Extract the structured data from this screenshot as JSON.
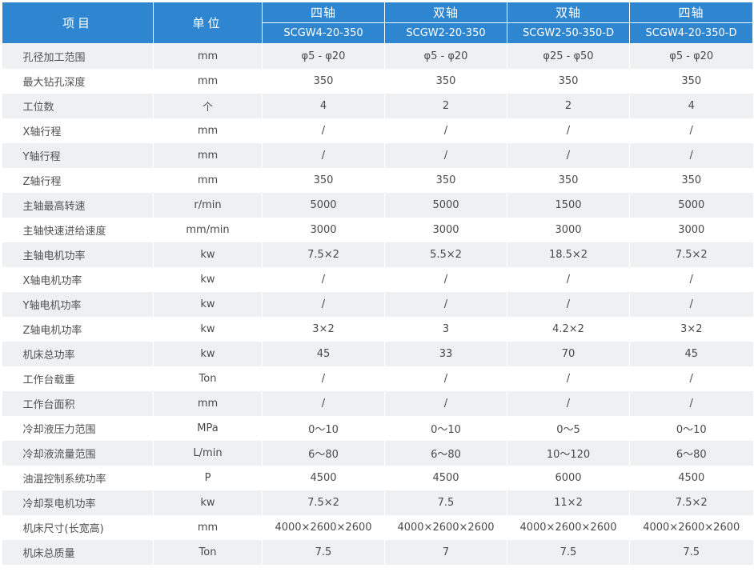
{
  "header": {
    "item": "项目",
    "unit": "单位",
    "models": [
      {
        "axis": "四轴",
        "code": "SCGW4-20-350"
      },
      {
        "axis": "双轴",
        "code": "SCGW2-20-350"
      },
      {
        "axis": "双轴",
        "code": "SCGW2-50-350-D"
      },
      {
        "axis": "四轴",
        "code": "SCGW4-20-350-D"
      }
    ]
  },
  "rows": [
    {
      "item": "孔径加工范围",
      "unit": "mm",
      "values": [
        "φ5 - φ20",
        "φ5 - φ20",
        "φ25 - φ50",
        "φ5 - φ20"
      ]
    },
    {
      "item": "最大钻孔深度",
      "unit": "mm",
      "values": [
        "350",
        "350",
        "350",
        "350"
      ]
    },
    {
      "item": "工位数",
      "unit": "个",
      "values": [
        "4",
        "2",
        "2",
        "4"
      ]
    },
    {
      "item": "X轴行程",
      "unit": "mm",
      "values": [
        "/",
        "/",
        "/",
        "/"
      ]
    },
    {
      "item": "Y轴行程",
      "unit": "mm",
      "values": [
        "/",
        "/",
        "/",
        "/"
      ]
    },
    {
      "item": "Z轴行程",
      "unit": "mm",
      "values": [
        "350",
        "350",
        "350",
        "350"
      ]
    },
    {
      "item": "主轴最高转速",
      "unit": "r/min",
      "values": [
        "5000",
        "5000",
        "1500",
        "5000"
      ]
    },
    {
      "item": "主轴快速进给速度",
      "unit": "mm/min",
      "values": [
        "3000",
        "3000",
        "3000",
        "3000"
      ]
    },
    {
      "item": "主轴电机功率",
      "unit": "kw",
      "values": [
        "7.5×2",
        "5.5×2",
        "18.5×2",
        "7.5×2"
      ]
    },
    {
      "item": "X轴电机功率",
      "unit": "kw",
      "values": [
        "/",
        "/",
        "/",
        "/"
      ]
    },
    {
      "item": "Y轴电机功率",
      "unit": "kw",
      "values": [
        "/",
        "/",
        "/",
        "/"
      ]
    },
    {
      "item": "Z轴电机功率",
      "unit": "kw",
      "values": [
        "3×2",
        "3",
        "4.2×2",
        "3×2"
      ]
    },
    {
      "item": "机床总功率",
      "unit": "kw",
      "values": [
        "45",
        "33",
        "70",
        "45"
      ]
    },
    {
      "item": "工作台载重",
      "unit": "Ton",
      "values": [
        "/",
        "/",
        "/",
        "/"
      ]
    },
    {
      "item": "工作台面积",
      "unit": "mm",
      "values": [
        "/",
        "/",
        "/",
        "/"
      ]
    },
    {
      "item": "冷却液压力范围",
      "unit": "MPa",
      "values": [
        "0～10",
        "0～10",
        "0～5",
        "0～10"
      ]
    },
    {
      "item": "冷却液流量范围",
      "unit": "L/min",
      "values": [
        "6～80",
        "6～80",
        "10～120",
        "6～80"
      ]
    },
    {
      "item": "油温控制系统功率",
      "unit": "P",
      "values": [
        "4500",
        "4500",
        "6000",
        "4500"
      ]
    },
    {
      "item": "冷却泵电机功率",
      "unit": "kw",
      "values": [
        "7.5×2",
        "7.5",
        "11×2",
        "7.5×2"
      ]
    },
    {
      "item": "机床尺寸(长宽高)",
      "unit": "mm",
      "values": [
        "4000×2600×2600",
        "4000×2600×2600",
        "4000×2600×2600",
        "4000×2600×2600"
      ]
    },
    {
      "item": "机床总质量",
      "unit": "Ton",
      "values": [
        "7.5",
        "7",
        "7.5",
        "7.5"
      ]
    }
  ]
}
